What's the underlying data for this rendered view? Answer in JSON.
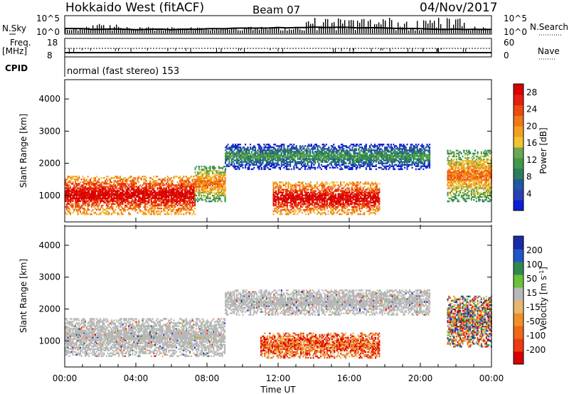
{
  "header": {
    "radar": "Hokkaido West (fitACF)",
    "beam": "Beam 07",
    "date": "04/Nov/2017"
  },
  "noise_panel": {
    "left_label": "N.Sky",
    "ticks": [
      "10^5",
      "10^0"
    ],
    "right_label": "N.Search"
  },
  "freq_panel": {
    "left_label_1": "Freq.",
    "left_label_2": "[MHz]",
    "left_ticks": [
      "18",
      "8"
    ],
    "right_ticks": [
      "60",
      "0"
    ],
    "right_label": "Nave"
  },
  "cpid_panel": {
    "label": "CPID",
    "mode": "normal (fast stereo) 153"
  },
  "colors": {
    "power_scale": [
      "#0a1fd8",
      "#2b3fb6",
      "#1f5aa0",
      "#2e7d5a",
      "#3e9a4a",
      "#6aa84f",
      "#f2c230",
      "#f2a020",
      "#f07818",
      "#ee4a10",
      "#e61e0c",
      "#d80000"
    ],
    "velocity_scale": [
      "#1a2aa8",
      "#2255c8",
      "#2d8a4e",
      "#6ac13a",
      "#b8b8b8",
      "#e8b870",
      "#f09028",
      "#f06818",
      "#ee3a10",
      "#d80000"
    ]
  },
  "chart_data": [
    {
      "type": "heatmap",
      "title": "",
      "xlabel": "Time UT",
      "ylabel": "Slant Range [km]",
      "x_ticks": [
        "00:00",
        "04:00",
        "08:00",
        "12:00",
        "16:00",
        "20:00",
        "00:00"
      ],
      "x_range_hours": [
        0,
        24
      ],
      "y_ticks": [
        1000,
        2000,
        3000,
        4000
      ],
      "ylim": [
        180,
        4600
      ],
      "colorbar": {
        "label": "Power [dB]",
        "ticks": [
          4,
          8,
          12,
          16,
          20,
          24,
          28
        ],
        "range": [
          0,
          30
        ]
      },
      "echo_regions": [
        {
          "from_hour": 0.0,
          "to_hour": 7.3,
          "range_km": [
            400,
            1600
          ],
          "level": "strong"
        },
        {
          "from_hour": 7.3,
          "to_hour": 9.0,
          "range_km": [
            800,
            1900
          ],
          "level": "moderate"
        },
        {
          "from_hour": 9.0,
          "to_hour": 20.5,
          "range_km": [
            1800,
            2600
          ],
          "level": "weak"
        },
        {
          "from_hour": 11.7,
          "to_hour": 17.7,
          "range_km": [
            400,
            1400
          ],
          "level": "strong"
        },
        {
          "from_hour": 21.5,
          "to_hour": 24.0,
          "range_km": [
            800,
            2400
          ],
          "level": "moderate"
        }
      ]
    },
    {
      "type": "heatmap",
      "title": "",
      "xlabel": "Time UT",
      "ylabel": "Slant Range [km]",
      "x_ticks": [
        "00:00",
        "04:00",
        "08:00",
        "12:00",
        "16:00",
        "20:00",
        "00:00"
      ],
      "x_range_hours": [
        0,
        24
      ],
      "y_ticks": [
        1000,
        2000,
        3000,
        4000
      ],
      "ylim": [
        180,
        4600
      ],
      "colorbar": {
        "label": "Velocity [m s^-1]",
        "ticks": [
          200,
          100,
          50,
          15,
          -15,
          -50,
          -100,
          -200
        ],
        "range": [
          -250,
          250
        ]
      },
      "echo_regions": [
        {
          "from_hour": 0.0,
          "to_hour": 9.0,
          "range_km": [
            500,
            1700
          ],
          "level": "ground scatter"
        },
        {
          "from_hour": 9.0,
          "to_hour": 20.5,
          "range_km": [
            1800,
            2600
          ],
          "level": "ground scatter"
        },
        {
          "from_hour": 11.0,
          "to_hour": 17.7,
          "range_km": [
            450,
            1250
          ],
          "level": "negative velocity"
        },
        {
          "from_hour": 21.5,
          "to_hour": 24.0,
          "range_km": [
            800,
            2400
          ],
          "level": "mixed"
        }
      ]
    }
  ]
}
